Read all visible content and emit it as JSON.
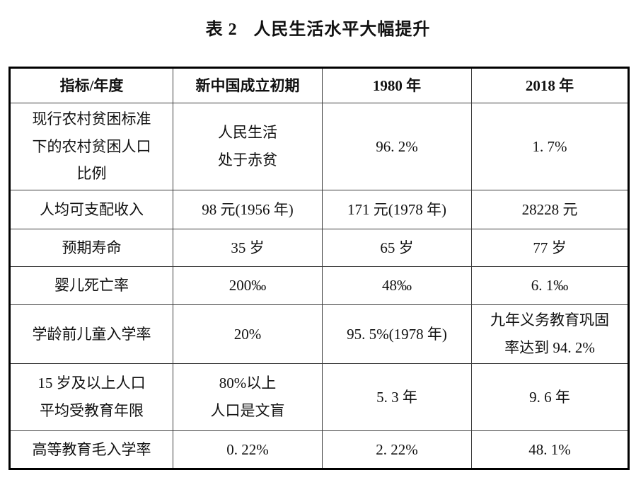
{
  "title": {
    "prefix": "表 2",
    "text": "人民生活水平大幅提升"
  },
  "table": {
    "headers": [
      "指标/年度",
      "新中国成立初期",
      "1980 年",
      "2018 年"
    ],
    "rows": [
      [
        "现行农村贫困标准\n下的农村贫困人口\n比例",
        "人民生活\n处于赤贫",
        "96. 2%",
        "1. 7%"
      ],
      [
        "人均可支配收入",
        "98 元(1956 年)",
        "171 元(1978 年)",
        "28228 元"
      ],
      [
        "预期寿命",
        "35 岁",
        "65 岁",
        "77 岁"
      ],
      [
        "婴儿死亡率",
        "200‰",
        "48‰",
        "6. 1‰"
      ],
      [
        "学龄前儿童入学率",
        "20%",
        "95. 5%(1978 年)",
        "九年义务教育巩固\n率达到 94. 2%"
      ],
      [
        "15 岁及以上人口\n平均受教育年限",
        "80%以上\n人口是文盲",
        "5. 3 年",
        "9. 6 年"
      ],
      [
        "高等教育毛入学率",
        "0. 22%",
        "2. 22%",
        "48. 1%"
      ]
    ]
  },
  "colors": {
    "text": "#111111",
    "border_outer": "#000000",
    "border_inner": "#3d3d3d",
    "background": "#ffffff"
  }
}
